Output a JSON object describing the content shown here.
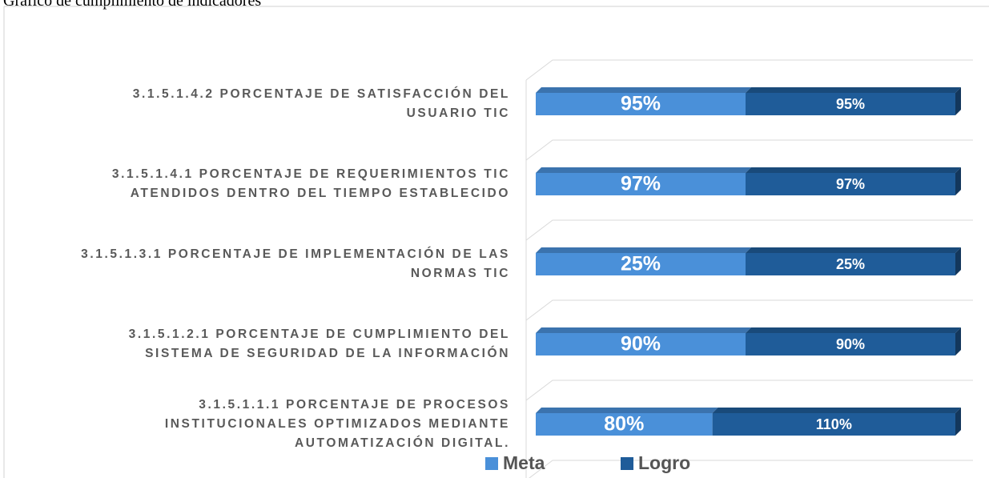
{
  "chart_data": {
    "type": "bar",
    "orientation": "horizontal",
    "stacking": "percent",
    "title": "Gráfico de cumplimiento de indicadores",
    "categories": [
      "3.1.5.1.4.2 PORCENTAJE DE SATISFACCIÓN DEL USUARIO TIC",
      "3.1.5.1.4.1 PORCENTAJE DE REQUERIMIENTOS TIC ATENDIDOS DENTRO DEL TIEMPO ESTABLECIDO",
      "3.1.5.1.3.1 PORCENTAJE DE IMPLEMENTACIÓN DE LAS NORMAS TIC",
      "3.1.5.1.2.1 PORCENTAJE DE CUMPLIMIENTO DEL SISTEMA DE SEGURIDAD DE LA INFORMACIÓN",
      "3.1.5.1.1.1 PORCENTAJE DE PROCESOS INSTITUCIONALES OPTIMIZADOS MEDIANTE AUTOMATIZACIÓN DIGITAL."
    ],
    "series": [
      {
        "name": "Meta",
        "color": "#4a90d9",
        "values": [
          95,
          97,
          25,
          90,
          80
        ],
        "value_labels": [
          "95%",
          "97%",
          "25%",
          "90%",
          "80%"
        ]
      },
      {
        "name": "Logro",
        "color": "#1f5c99",
        "values": [
          95,
          97,
          25,
          90,
          110
        ],
        "value_labels": [
          "95%",
          "97%",
          "25%",
          "90%",
          "110%"
        ]
      }
    ],
    "legend": "bottom"
  }
}
